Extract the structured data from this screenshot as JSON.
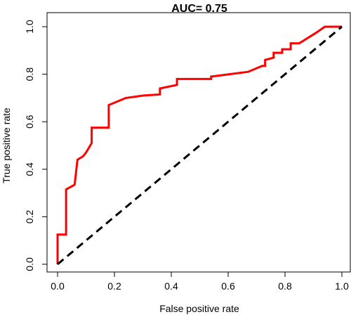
{
  "chart_data": {
    "type": "line",
    "title": "AUC= 0.75",
    "xlabel": "False positive rate",
    "ylabel": "True positive rate",
    "xlim": [
      0,
      1
    ],
    "ylim": [
      0,
      1
    ],
    "x_ticks": [
      "0.0",
      "0.2",
      "0.4",
      "0.6",
      "0.8",
      "1.0"
    ],
    "y_ticks": [
      "0.0",
      "0.2",
      "0.4",
      "0.6",
      "0.8",
      "1.0"
    ],
    "grid": false,
    "legend": "none",
    "colors": {
      "roc": "#ff0000",
      "reference": "#000000"
    },
    "series": [
      {
        "style": "solid",
        "x": [
          0.0,
          0.0,
          0.03,
          0.03,
          0.06,
          0.07,
          0.09,
          0.1,
          0.12,
          0.12,
          0.18,
          0.18,
          0.24,
          0.3,
          0.36,
          0.36,
          0.42,
          0.42,
          0.54,
          0.54,
          0.67,
          0.72,
          0.73,
          0.73,
          0.76,
          0.76,
          0.79,
          0.79,
          0.82,
          0.82,
          0.85,
          0.91,
          0.94,
          0.94,
          1.0
        ],
        "y": [
          0.0,
          0.125,
          0.125,
          0.315,
          0.335,
          0.44,
          0.455,
          0.47,
          0.51,
          0.575,
          0.575,
          0.67,
          0.7,
          0.71,
          0.715,
          0.74,
          0.755,
          0.78,
          0.78,
          0.79,
          0.81,
          0.835,
          0.835,
          0.86,
          0.87,
          0.89,
          0.89,
          0.905,
          0.905,
          0.93,
          0.93,
          0.975,
          1.0,
          1.0,
          1.0
        ]
      },
      {
        "style": "dashed",
        "x": [
          0,
          1
        ],
        "y": [
          0,
          1
        ]
      }
    ]
  }
}
